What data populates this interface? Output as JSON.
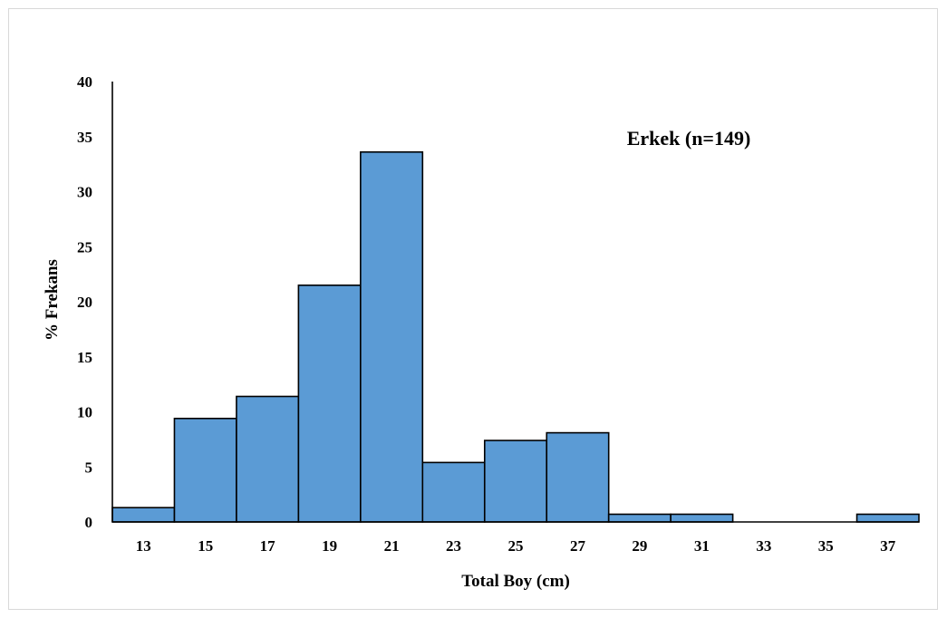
{
  "chart_data": {
    "type": "bar",
    "title": "",
    "xlabel": "Total Boy (cm)",
    "ylabel": "% Frekans",
    "annotation": "Erkek (n=149)",
    "categories": [
      "13",
      "15",
      "17",
      "19",
      "21",
      "23",
      "25",
      "27",
      "29",
      "31",
      "33",
      "35",
      "37"
    ],
    "values": [
      1.3,
      9.4,
      11.4,
      21.5,
      33.6,
      5.4,
      7.4,
      8.1,
      0.7,
      0.7,
      0,
      0,
      0.7
    ],
    "yticks": [
      "0",
      "5",
      "10",
      "15",
      "20",
      "25",
      "30",
      "35",
      "40"
    ],
    "ylim": [
      0,
      40
    ],
    "grid": false,
    "legend": "none",
    "bar_color": "#5b9bd5",
    "edge_color": "#000000"
  }
}
